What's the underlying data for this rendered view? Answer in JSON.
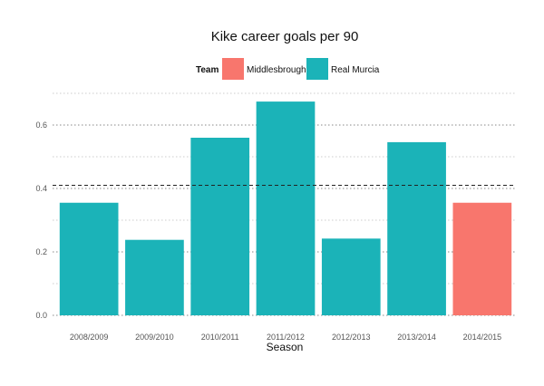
{
  "chart_data": {
    "type": "bar",
    "title": "Kike career goals per 90",
    "xlabel": "Season",
    "ylabel": "",
    "categories": [
      "2008/2009",
      "2009/2010",
      "2010/2011",
      "2011/2012",
      "2012/2013",
      "2013/2014",
      "2014/2015"
    ],
    "values": [
      0.355,
      0.238,
      0.56,
      0.674,
      0.242,
      0.546,
      0.355
    ],
    "teams": [
      "Real Murcia",
      "Real Murcia",
      "Real Murcia",
      "Real Murcia",
      "Real Murcia",
      "Real Murcia",
      "Middlesbrough"
    ],
    "ylim": [
      0,
      0.72
    ],
    "yticks": [
      0.0,
      0.2,
      0.4,
      0.6
    ],
    "ytick_labels": [
      "0.0",
      "0.2",
      "0.4",
      "0.6"
    ],
    "reference_line": 0.41,
    "legend": {
      "title": "Team",
      "position": "top",
      "entries": [
        {
          "name": "Middlesbrough",
          "color": "#F8766D"
        },
        {
          "name": "Real Murcia",
          "color": "#1BB3B8"
        }
      ]
    },
    "grid": true
  }
}
